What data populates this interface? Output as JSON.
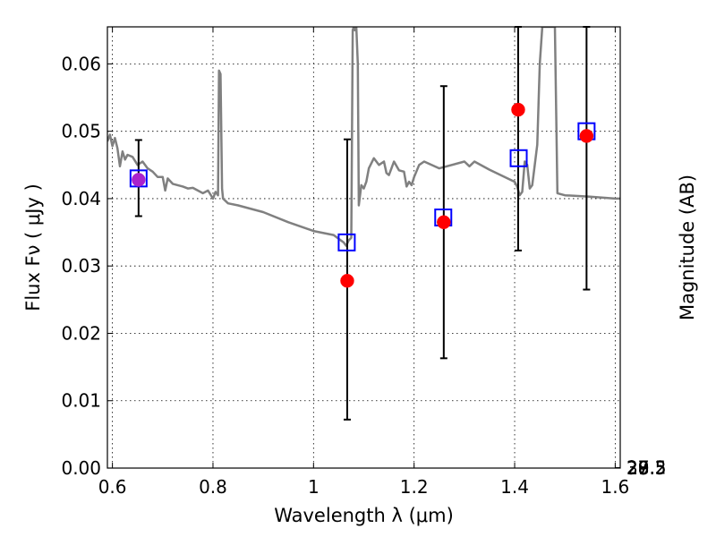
{
  "chart_data": {
    "type": "scatter",
    "xlabel": "Wavelength  λ (μm)",
    "ylabel": "Flux  Fν  ( μJy )",
    "ylabel_right": "Magnitude (AB)",
    "xlim": [
      0.59,
      1.61
    ],
    "ylim": [
      0,
      0.0655
    ],
    "x_ticks": [
      0.6,
      0.8,
      1.0,
      1.2,
      1.4,
      1.6
    ],
    "x_tick_labels": [
      "0.6",
      "0.8",
      "1",
      "1.2",
      "1.4",
      "1.6"
    ],
    "y_ticks": [
      0,
      0.01,
      0.02,
      0.03,
      0.04,
      0.05,
      0.06
    ],
    "y_tick_labels": [
      "0.00",
      "0.01",
      "0.02",
      "0.03",
      "0.04",
      "0.05",
      "0.06"
    ],
    "right_ticks": [
      {
        "label": "27",
        "mag": 27.0
      },
      {
        "label": "27.2",
        "mag": 27.2
      },
      {
        "label": "27.5",
        "mag": 27.5
      },
      {
        "label": "28",
        "mag": 28.0
      },
      {
        "label": "28.5",
        "mag": 28.5
      },
      {
        "label": "29",
        "mag": 29.0
      },
      {
        "label": "30",
        "mag": 30.0
      }
    ],
    "grid": true,
    "series": [
      {
        "kind": "model-spectrum",
        "color": "#808080",
        "x": [
          0.59,
          0.595,
          0.6,
          0.605,
          0.61,
          0.615,
          0.62,
          0.625,
          0.63,
          0.64,
          0.65,
          0.66,
          0.67,
          0.68,
          0.69,
          0.7,
          0.705,
          0.71,
          0.72,
          0.73,
          0.74,
          0.75,
          0.76,
          0.77,
          0.78,
          0.79,
          0.8,
          0.805,
          0.81,
          0.812,
          0.815,
          0.818,
          0.82,
          0.83,
          0.85,
          0.9,
          0.95,
          1.0,
          1.04,
          1.06,
          1.065,
          1.07,
          1.075,
          1.078,
          1.08,
          1.082,
          1.085,
          1.088,
          1.09,
          1.095,
          1.1,
          1.105,
          1.11,
          1.12,
          1.13,
          1.14,
          1.145,
          1.15,
          1.155,
          1.16,
          1.17,
          1.18,
          1.185,
          1.19,
          1.195,
          1.2,
          1.21,
          1.22,
          1.25,
          1.3,
          1.31,
          1.32,
          1.35,
          1.4,
          1.405,
          1.41,
          1.415,
          1.42,
          1.425,
          1.43,
          1.435,
          1.44,
          1.445,
          1.45,
          1.455,
          1.46,
          1.47,
          1.48,
          1.485,
          1.5,
          1.55,
          1.6,
          1.61
        ],
        "y": [
          0.0485,
          0.0495,
          0.0478,
          0.049,
          0.0475,
          0.0448,
          0.047,
          0.0458,
          0.0465,
          0.0462,
          0.045,
          0.0455,
          0.0445,
          0.044,
          0.0432,
          0.0432,
          0.0412,
          0.043,
          0.0422,
          0.042,
          0.0418,
          0.0415,
          0.0416,
          0.0412,
          0.0408,
          0.0412,
          0.04,
          0.041,
          0.0405,
          0.059,
          0.0585,
          0.0415,
          0.04,
          0.0393,
          0.039,
          0.038,
          0.0365,
          0.0352,
          0.0346,
          0.0335,
          0.033,
          0.0338,
          0.0342,
          0.065,
          0.0655,
          0.065,
          0.0655,
          0.06,
          0.039,
          0.042,
          0.0415,
          0.0425,
          0.0445,
          0.046,
          0.045,
          0.0455,
          0.0438,
          0.0435,
          0.0445,
          0.0455,
          0.0442,
          0.044,
          0.0418,
          0.0425,
          0.042,
          0.0432,
          0.045,
          0.0455,
          0.0445,
          0.0455,
          0.0448,
          0.0455,
          0.0443,
          0.0425,
          0.0418,
          0.0405,
          0.041,
          0.0455,
          0.045,
          0.0415,
          0.042,
          0.045,
          0.048,
          0.06,
          0.0655,
          0.0655,
          0.0655,
          0.0655,
          0.0408,
          0.0405,
          0.0403,
          0.04,
          0.04
        ]
      },
      {
        "kind": "model-photometry",
        "marker": "open-square",
        "color": "#0000ff",
        "x": [
          0.652,
          1.066,
          1.258,
          1.408,
          1.543
        ],
        "y": [
          0.043,
          0.0335,
          0.0372,
          0.046,
          0.05
        ]
      },
      {
        "kind": "observed",
        "marker": "filled-circle",
        "color": "#ff0000",
        "x": [
          0.652,
          1.067,
          1.259,
          1.407,
          1.543
        ],
        "y": [
          0.0428,
          0.0278,
          0.0365,
          0.0532,
          0.0493
        ],
        "yerr_low": [
          0.0054,
          0.0206,
          0.0202,
          0.0209,
          0.0228
        ],
        "yerr_high": [
          0.0059,
          0.021,
          0.0202,
          0.0123,
          0.0162
        ]
      }
    ],
    "overlap_marker_color": "#aa22cc"
  }
}
